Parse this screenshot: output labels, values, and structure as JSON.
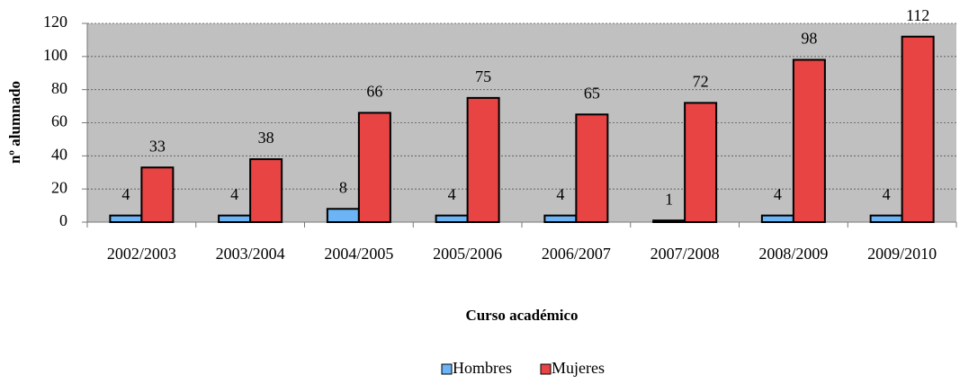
{
  "chart_data": {
    "type": "bar",
    "x_label": "Curso académico",
    "y_label": "nº alumnado",
    "categories": [
      "2002/2003",
      "2003/2004",
      "2004/2005",
      "2005/2006",
      "2006/2007",
      "2007/2008",
      "2008/2009",
      "2009/2010"
    ],
    "series": [
      {
        "name": "Hombres",
        "color": "#6cb4f5",
        "values": [
          4,
          4,
          8,
          4,
          4,
          1,
          4,
          4
        ]
      },
      {
        "name": "Mujeres",
        "color": "#e84444",
        "values": [
          33,
          38,
          66,
          75,
          65,
          72,
          98,
          112
        ]
      }
    ],
    "ylim": [
      0,
      120
    ],
    "yticks": [
      0,
      20,
      40,
      60,
      80,
      100,
      120
    ],
    "grid": true,
    "legend": "bottom"
  }
}
